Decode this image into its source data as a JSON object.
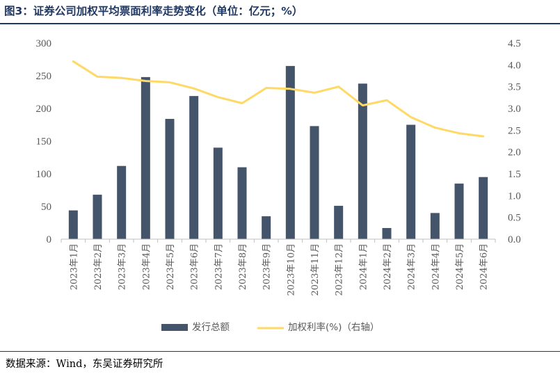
{
  "title": "图3：证券公司加权平均票面利率走势变化（单位：亿元；%）",
  "source": "数据来源：Wind，东吴证券研究所",
  "colors": {
    "bar": "#44546a",
    "line": "#ffd966",
    "title": "#1f3864"
  },
  "chart_data": {
    "type": "bar+line",
    "categories": [
      "2023年1月",
      "2023年2月",
      "2023年3月",
      "2023年4月",
      "2023年5月",
      "2023年6月",
      "2023年7月",
      "2023年8月",
      "2023年9月",
      "2023年10月",
      "2023年11月",
      "2023年12月",
      "2024年1月",
      "2024年2月",
      "2024年3月",
      "2024年4月",
      "2024年5月",
      "2024年6月"
    ],
    "series": [
      {
        "name": "发行总额",
        "type": "bar",
        "axis": "left",
        "values": [
          44,
          68,
          112,
          248,
          184,
          219,
          140,
          110,
          35,
          265,
          173,
          51,
          238,
          17,
          175,
          40,
          85,
          95
        ]
      },
      {
        "name": "加权利率(%)（右轴）",
        "type": "line",
        "axis": "right",
        "values": [
          4.08,
          3.73,
          3.7,
          3.63,
          3.6,
          3.46,
          3.26,
          3.12,
          3.47,
          3.45,
          3.36,
          3.5,
          3.07,
          3.19,
          2.8,
          2.56,
          2.43,
          2.36
        ]
      }
    ],
    "ylim_left": [
      0,
      300
    ],
    "yticks_left": [
      "0",
      "50",
      "100",
      "150",
      "200",
      "250",
      "300"
    ],
    "ylim_right": [
      0,
      4.5
    ],
    "yticks_right": [
      "0.0",
      "0.5",
      "1.0",
      "1.5",
      "2.0",
      "2.5",
      "3.0",
      "3.5",
      "4.0",
      "4.5"
    ],
    "grid": false,
    "legend_position": "bottom"
  }
}
